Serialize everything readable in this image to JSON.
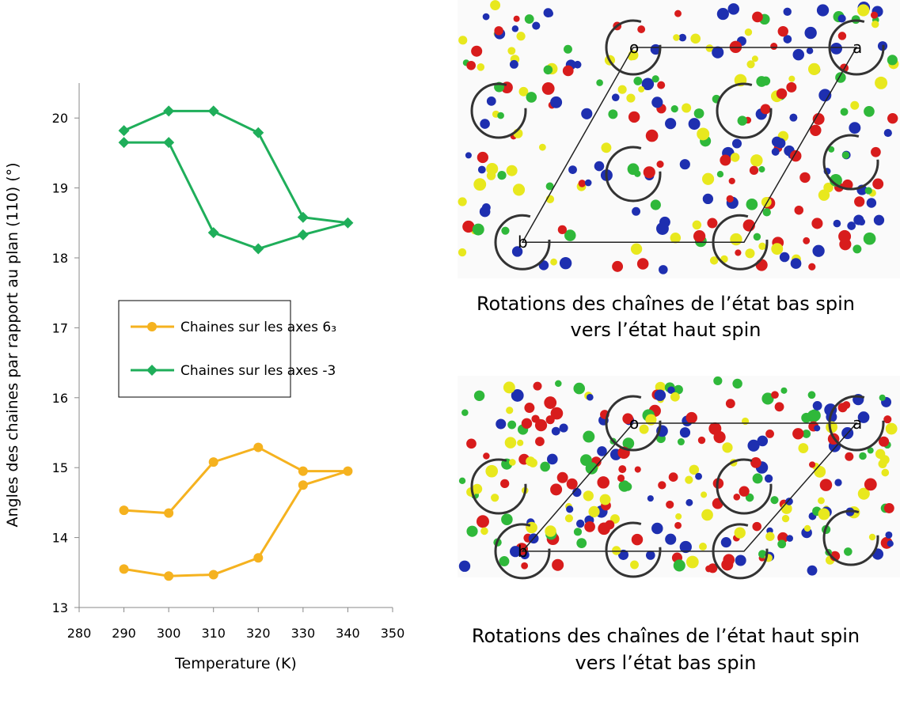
{
  "chart_data": {
    "type": "line",
    "xlabel": "Temperature (K)",
    "ylabel": "Angles des chaines par rapport au plan (110) (°)",
    "xlim": [
      280,
      350
    ],
    "xticks": [
      280,
      290,
      300,
      310,
      320,
      330,
      340,
      350
    ],
    "ylim": [
      13,
      20.5
    ],
    "yticks": [
      13,
      14,
      15,
      16,
      17,
      18,
      19,
      20
    ],
    "legend": "inside",
    "series": [
      {
        "name": "Chaines sur les axes 6₃",
        "color": "#f5b21f",
        "marker": "circle",
        "x": [
          290,
          300,
          310,
          320,
          330,
          340,
          330,
          320,
          310,
          300,
          290
        ],
        "values": [
          13.55,
          13.45,
          13.47,
          13.71,
          14.75,
          14.95,
          14.95,
          15.29,
          15.08,
          14.35,
          14.39
        ]
      },
      {
        "name": "Chaines sur les axes -3",
        "color": "#1fae5a",
        "marker": "diamond",
        "x": [
          290,
          300,
          310,
          320,
          330,
          340,
          330,
          320,
          310,
          300,
          290
        ],
        "values": [
          19.82,
          20.1,
          20.1,
          19.79,
          18.58,
          18.5,
          18.33,
          18.13,
          18.36,
          19.65,
          19.65
        ]
      }
    ]
  },
  "panels": [
    {
      "caption_lines": [
        "Rotations des chaînes de l’état bas spin",
        "vers l’état haut spin"
      ],
      "cell_labels": [
        "o",
        "a",
        "b"
      ]
    },
    {
      "caption_lines": [
        "Rotations des chaînes de l’état haut spin",
        "vers l’état bas spin"
      ],
      "cell_labels": [
        "o",
        "a",
        "b"
      ]
    }
  ]
}
